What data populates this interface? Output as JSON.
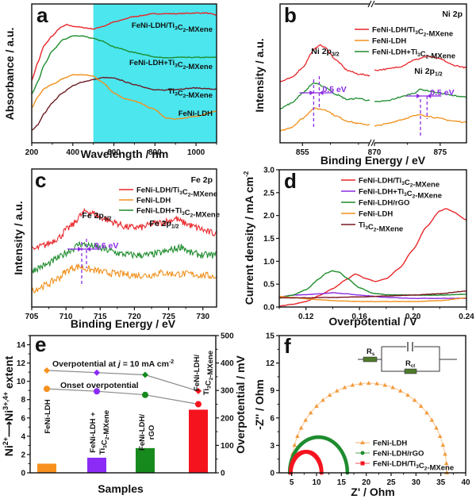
{
  "chart_data": [
    {
      "panel": "a",
      "type": "line",
      "panel_label": "a",
      "xlabel": "Wavelength / nm",
      "ylabel": "Absorbance / a.u.",
      "xlim": [
        200,
        1100
      ],
      "ylim": [
        0,
        10
      ],
      "xticks": [
        200,
        400,
        600,
        800,
        1000
      ],
      "yticks_shown": false,
      "shaded_region": {
        "from": 500,
        "to": 1100,
        "color": "#4BE6EE"
      },
      "series": [
        {
          "name": "FeNi-LDH/Ti3C2-MXene",
          "label": "FeNi-LDH/Ti₃C₂-MXene",
          "color": "#E8262A",
          "x": [
            200,
            230,
            260,
            300,
            340,
            370,
            400,
            450,
            500,
            550,
            600,
            700,
            800,
            900,
            1000,
            1050,
            1100
          ],
          "y": [
            4.5,
            5.8,
            7.0,
            7.7,
            8.3,
            8.5,
            8.4,
            8.3,
            8.2,
            8.4,
            8.7,
            9.1,
            9.3,
            9.3,
            9.35,
            9.35,
            9.2
          ]
        },
        {
          "name": "FeNi-LDH+Ti3C2-MXene",
          "label": "FeNi-LDH+Ti₃C₂-MXene",
          "color": "#1E8C2E",
          "x": [
            200,
            230,
            260,
            300,
            350,
            400,
            450,
            500,
            550,
            600,
            700,
            800,
            850,
            900,
            1000,
            1100
          ],
          "y": [
            3.5,
            4.4,
            5.6,
            6.6,
            7.4,
            7.7,
            7.7,
            7.5,
            7.3,
            6.9,
            6.5,
            6.2,
            6.1,
            6.15,
            6.15,
            6.15
          ]
        },
        {
          "name": "Ti3C2-MXene",
          "label": "Ti₃C₂-MXene",
          "color": "#6B1C24",
          "x": [
            200,
            230,
            260,
            300,
            350,
            400,
            450,
            500,
            550,
            600,
            700,
            800,
            850,
            900,
            1000,
            1100
          ],
          "y": [
            0.9,
            1.3,
            2.1,
            2.9,
            3.6,
            4.1,
            4.4,
            4.55,
            4.7,
            4.65,
            4.2,
            3.8,
            3.8,
            3.85,
            3.95,
            3.85
          ]
        },
        {
          "name": "FeNi-LDH",
          "label": "FeNi-LDH",
          "color": "#F0901C",
          "x": [
            200,
            230,
            260,
            300,
            350,
            400,
            450,
            500,
            550,
            600,
            650,
            700,
            800,
            850,
            900,
            1000,
            1100
          ],
          "y": [
            2.5,
            3.3,
            3.9,
            4.2,
            4.6,
            4.9,
            4.9,
            4.8,
            4.3,
            3.6,
            3.2,
            3.0,
            2.4,
            1.8,
            1.7,
            1.9,
            2.3
          ]
        }
      ]
    },
    {
      "panel": "b",
      "type": "line",
      "panel_label": "b",
      "title": "Ni 2p",
      "xlabel": "Binding Energy / eV",
      "ylabel": "Intensity / a.u.",
      "broken_axis": true,
      "segments": [
        {
          "xlim": [
            853,
            861
          ]
        },
        {
          "xlim": [
            870,
            877
          ]
        }
      ],
      "xticks": [
        855,
        870,
        875
      ],
      "ylim": [
        0,
        10
      ],
      "legend": {
        "position": "top-right"
      },
      "series": [
        {
          "name": "FeNi-LDH/Ti3C2-MXene",
          "label": "FeNi-LDH/Ti₃C₂-MXene",
          "color": "#E8262A",
          "seg1": {
            "x": [
              853,
              854,
              855,
              856,
              856.5,
              857,
              858,
              859,
              860,
              861
            ],
            "y": [
              4.5,
              4.8,
              5.6,
              7.0,
              7.4,
              7.2,
              6.2,
              5.4,
              5.1,
              5.0
            ]
          },
          "seg2": {
            "x": [
              870,
              871,
              872,
              873,
              874,
              875,
              876,
              877
            ],
            "y": [
              5.4,
              5.5,
              5.7,
              6.2,
              6.5,
              6.3,
              5.8,
              5.6
            ]
          }
        },
        {
          "name": "FeNi-LDH",
          "label": "FeNi-LDH",
          "color": "#F0901C",
          "seg1": {
            "x": [
              853,
              854,
              855,
              856,
              857,
              858,
              859,
              860,
              861
            ],
            "y": [
              0.6,
              0.9,
              1.6,
              2.4,
              2.3,
              1.8,
              1.4,
              1.2,
              1.1
            ]
          },
          "seg2": {
            "x": [
              870,
              871,
              872,
              873,
              873.5,
              874,
              875,
              876,
              877
            ],
            "y": [
              1.0,
              1.2,
              1.5,
              1.8,
              1.9,
              1.8,
              1.6,
              1.4,
              1.3
            ]
          }
        },
        {
          "name": "FeNi-LDH+Ti3C2-MXene",
          "label": "FeNi-LDH+Ti₃C₂-MXene",
          "color": "#1E8C2E",
          "seg1": {
            "x": [
              853,
              854,
              855,
              856,
              857,
              858,
              859,
              860,
              861
            ],
            "y": [
              2.4,
              2.8,
              3.6,
              4.4,
              4.1,
              3.5,
              3.1,
              3.2,
              3.0
            ]
          },
          "seg2": {
            "x": [
              870,
              871,
              872,
              873,
              873.5,
              874,
              875,
              876,
              877
            ],
            "y": [
              2.9,
              3.0,
              3.3,
              3.6,
              3.9,
              3.8,
              3.6,
              3.4,
              3.3
            ]
          }
        }
      ],
      "annotations": [
        {
          "text": "Ni 2p3/2",
          "main": "Ni 2p",
          "sub": "3/2"
        },
        {
          "text": "Ni 2p1/2",
          "main": "Ni 2p",
          "sub": "1/2"
        },
        {
          "text": "0.5 eV",
          "peak": "2p3/2",
          "shift": 0.5,
          "from": 856.0,
          "to": 856.5
        },
        {
          "text": "0.5 eV",
          "peak": "2p1/2",
          "shift": 0.5,
          "from": 873.5,
          "to": 874.0
        }
      ]
    },
    {
      "panel": "c",
      "type": "line",
      "panel_label": "c",
      "title": "Fe 2p",
      "xlabel": "Binding Energy / eV",
      "ylabel": "Intensity / a.u.",
      "xlim": [
        705,
        732
      ],
      "xticks": [
        705,
        710,
        715,
        720,
        725,
        730
      ],
      "ylim": [
        0,
        10
      ],
      "legend": {
        "position": "top-right"
      },
      "series": [
        {
          "name": "FeNi-LDH/Ti3C2-MXene",
          "label": "FeNi-LDH/Ti₃C₂-MXene",
          "color": "#E8262A",
          "x": [
            705,
            707,
            709,
            710,
            711,
            712,
            713,
            714,
            715,
            717,
            719,
            721,
            723,
            725,
            726,
            727,
            729,
            731,
            732
          ],
          "y": [
            4.2,
            4.6,
            5.2,
            5.8,
            6.2,
            6.9,
            7.3,
            7.1,
            6.8,
            6.4,
            6.0,
            6.0,
            6.3,
            6.5,
            6.7,
            6.4,
            6.0,
            5.6,
            5.5
          ]
        },
        {
          "name": "FeNi-LDH",
          "label": "FeNi-LDH",
          "color": "#F0901C",
          "x": [
            705,
            707,
            709,
            710,
            711,
            712,
            713,
            714,
            716,
            718,
            720,
            722,
            724,
            726,
            728,
            730,
            732
          ],
          "y": [
            1.0,
            1.4,
            2.0,
            2.5,
            2.8,
            2.9,
            2.7,
            2.6,
            2.4,
            2.3,
            2.2,
            2.2,
            2.4,
            2.3,
            2.3,
            2.2,
            2.1
          ]
        },
        {
          "name": "FeNi-LDH+Ti3C2-MXene",
          "label": "FeNi-LDH+Ti₃C₂-MXene",
          "color": "#1E8C2E",
          "x": [
            705,
            707,
            709,
            710,
            711,
            712,
            713,
            714,
            716,
            718,
            720,
            722,
            724,
            726,
            727,
            728,
            730,
            732
          ],
          "y": [
            2.6,
            3.0,
            3.6,
            4.0,
            4.3,
            4.7,
            4.6,
            4.5,
            4.2,
            3.9,
            3.8,
            3.8,
            4.0,
            4.3,
            4.5,
            4.0,
            3.8,
            3.8
          ]
        }
      ],
      "annotations": [
        {
          "text": "Fe 2p3/2",
          "main": "Fe 2p",
          "sub": "3/2"
        },
        {
          "text": "Fe 2p1/2",
          "main": "Fe 2p",
          "sub": "1/2"
        },
        {
          "text": "0.6 eV",
          "shift": 0.6,
          "from": 712.3,
          "to": 712.9
        }
      ]
    },
    {
      "panel": "d",
      "type": "line",
      "panel_label": "d",
      "xlabel": "Overpotential / V",
      "ylabel": "Current density / mA cm-2",
      "xlim": [
        0.1,
        0.24
      ],
      "xticks": [
        0.12,
        0.16,
        0.2,
        0.24
      ],
      "ylim": [
        0.0,
        3.0
      ],
      "yticks": [
        0.0,
        0.5,
        1.0,
        1.5,
        2.0,
        2.5,
        3.0
      ],
      "legend": {
        "position": "top-right"
      },
      "series": [
        {
          "name": "FeNi-LDH/Ti3C2-MXene",
          "label": "FeNi-LDH/Ti₃C₂-MXene",
          "color": "#E8262A",
          "x": [
            0.1,
            0.11,
            0.12,
            0.13,
            0.14,
            0.15,
            0.157,
            0.165,
            0.172,
            0.18,
            0.19,
            0.2,
            0.21,
            0.22,
            0.225,
            0.23,
            0.24
          ],
          "y": [
            0.02,
            0.06,
            0.12,
            0.25,
            0.4,
            0.6,
            0.72,
            0.62,
            0.56,
            0.62,
            0.85,
            1.25,
            1.75,
            2.1,
            2.15,
            2.08,
            1.9
          ]
        },
        {
          "name": "FeNi-LDH+Ti3C2-MXene",
          "label": "FeNi-LDH+Ti₃C₂-MXene",
          "color": "#8B2BE2",
          "x": [
            0.1,
            0.11,
            0.12,
            0.13,
            0.14,
            0.15,
            0.16,
            0.18,
            0.2,
            0.22,
            0.24
          ],
          "y": [
            0.22,
            0.26,
            0.27,
            0.29,
            0.31,
            0.29,
            0.26,
            0.21,
            0.19,
            0.19,
            0.19
          ]
        },
        {
          "name": "FeNi-LDH/rGO",
          "label": "FeNi-LDH/rGO",
          "color": "#1E8C2E",
          "x": [
            0.1,
            0.11,
            0.12,
            0.13,
            0.135,
            0.14,
            0.145,
            0.15,
            0.16,
            0.17,
            0.18,
            0.2,
            0.22,
            0.24
          ],
          "y": [
            0.2,
            0.26,
            0.38,
            0.62,
            0.74,
            0.79,
            0.76,
            0.64,
            0.42,
            0.3,
            0.27,
            0.26,
            0.26,
            0.28
          ]
        },
        {
          "name": "FeNi-LDH",
          "label": "FeNi-LDH",
          "color": "#F0901C",
          "x": [
            0.1,
            0.11,
            0.12,
            0.13,
            0.14,
            0.16,
            0.18,
            0.2,
            0.22,
            0.24
          ],
          "y": [
            0.23,
            0.21,
            0.18,
            0.16,
            0.14,
            0.12,
            0.12,
            0.12,
            0.14,
            0.2
          ]
        },
        {
          "name": "Ti3C2-MXene",
          "label": "Ti₃C₂-MXene",
          "color": "#7A1620",
          "x": [
            0.1,
            0.12,
            0.14,
            0.16,
            0.18,
            0.2,
            0.22,
            0.24
          ],
          "y": [
            0.2,
            0.2,
            0.21,
            0.22,
            0.24,
            0.26,
            0.29,
            0.35
          ]
        }
      ]
    },
    {
      "panel": "e",
      "type": "bar",
      "panel_label": "e",
      "xlabel": "Samples",
      "ylabel": "Ni2+ → Ni3+,4+ extent",
      "ylabel_right": "Overpotential / mV",
      "ylim": [
        0,
        15
      ],
      "yticks": [
        0,
        2,
        4,
        6,
        8,
        10,
        12,
        14
      ],
      "ylim_right": [
        0,
        500
      ],
      "yticks_right": [
        0,
        100,
        200,
        300,
        400,
        500
      ],
      "categories": [
        "FeNi-LDH",
        "FeNi-LDH + Ti3C2-MXene",
        "FeNi-LDH/ rGO",
        "FeNi-LDH/ Ti3C2-MXene"
      ],
      "category_lines": [
        [
          "FeNi-LDH"
        ],
        [
          "FeNi-LDH +",
          "Ti₃C₂-MXene"
        ],
        [
          "FeNi-LDH/",
          "rGO"
        ],
        [
          "FeNi-LDH/",
          "Ti₃C₂-MXene"
        ]
      ],
      "values": [
        1.0,
        1.65,
        2.7,
        6.9
      ],
      "bar_colors": [
        "#F7901E",
        "#8B2BF5",
        "#178A1E",
        "#F5141E"
      ],
      "series_right": [
        {
          "name": "Overpotential at j = 10 mA cm-2",
          "label": "Overpotential at j = 10 mA cm⁻²",
          "marker": "diamond",
          "values": [
            373,
            365,
            357,
            298
          ]
        },
        {
          "name": "Onset overpotential",
          "label": "Onset overpotential",
          "marker": "circle",
          "values": [
            306,
            297,
            284,
            250
          ]
        }
      ],
      "line_color": "#8A8A8A"
    },
    {
      "panel": "f",
      "type": "scatter",
      "panel_label": "f",
      "xlabel": "Z' / Ohm",
      "ylabel": "-Z'' / Ohm",
      "xlim": [
        2.5,
        40
      ],
      "xticks": [
        5,
        10,
        15,
        20,
        25,
        30,
        35,
        40
      ],
      "ylim": [
        0,
        15
      ],
      "yticks": [
        0,
        3,
        6,
        9,
        12,
        15
      ],
      "legend": {
        "position": "bottom-right"
      },
      "circuit": {
        "Rs": "Rs",
        "Rct": "Rct",
        "Rs_sub": "s",
        "Rct_sub": "ct",
        "element_color": "#4E7A2A"
      },
      "series": [
        {
          "name": "FeNi-LDH",
          "label": "FeNi-LDH",
          "color": "#F39A3C",
          "marker": "triangle",
          "x_start": 4.8,
          "x_end": 36.2,
          "peak": 9.8,
          "points": 30
        },
        {
          "name": "FeNi-LDH/rGO",
          "label": "FeNi-LDH/rGO",
          "color": "#1E8C2E",
          "marker": "circle",
          "x_start": 4.6,
          "x_end": 16.2,
          "peak": 3.9,
          "points": 55
        },
        {
          "name": "FeNi-LDH/Ti3C2-MXene",
          "label": "FeNi-LDH/Ti₃C₂-MXene",
          "color": "#F5141E",
          "marker": "square",
          "x_start": 4.8,
          "x_end": 11.0,
          "peak": 2.3,
          "points": 55
        }
      ]
    }
  ],
  "labels": {
    "a": {
      "panel": "a",
      "y": "Absorbance / a.u.",
      "x": "Wavelength / nm"
    },
    "b": {
      "panel": "b",
      "title": "Ni 2p",
      "y": "Intensity / a.u.",
      "x": "Binding Energy / eV",
      "peak1_main": "Ni 2p",
      "peak1_sub": "3/2",
      "peak2_main": "Ni 2p",
      "peak2_sub": "1/2",
      "shift1": "0.5 eV",
      "shift2": "0.5 eV"
    },
    "c": {
      "panel": "c",
      "title": "Fe 2p",
      "y": "Intensity / a.u.",
      "x": "Binding Energy / eV",
      "peak1_main": "Fe 2p",
      "peak1_sub": "3/2",
      "peak2_main": "Fe 2p",
      "peak2_sub": "1/2",
      "shift": "0.6 eV"
    },
    "d": {
      "panel": "d",
      "y_main": "Current density / mA cm",
      "y_sup": "-2",
      "x": "Overpotential / V"
    },
    "e": {
      "panel": "e",
      "x": "Samples",
      "y_right": "Overpotential / mV",
      "y_ni2": "Ni",
      "y_sup2": "2+",
      "y_ni3": "Ni",
      "y_sup3": "3+,4+",
      "y_ext": " extent",
      "annot1_pre": "Overpotential at ",
      "annot1_j": "j",
      "annot1_post": " = 10 mA cm",
      "annot1_sup": "-2",
      "annot2": "Onset overpotential"
    },
    "f": {
      "panel": "f",
      "x": "Z' / Ohm",
      "y": "-Z'' / Ohm",
      "y_overlap": "Overpotential / mV"
    }
  }
}
